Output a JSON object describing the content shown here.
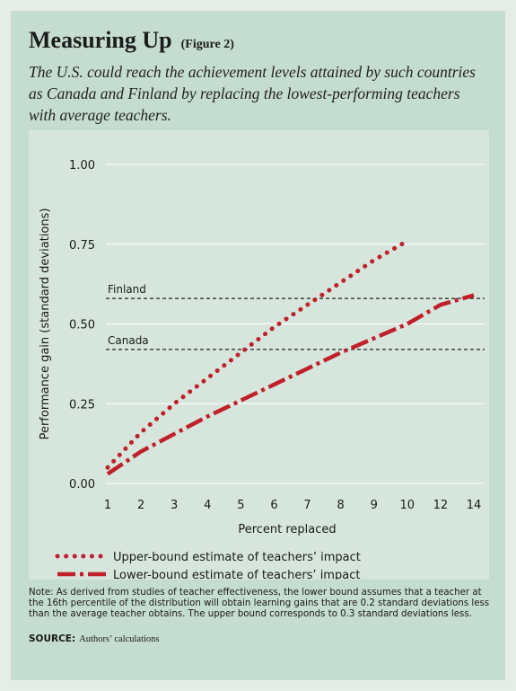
{
  "header": {
    "title": "Measuring Up",
    "figure_label": "(Figure 2)",
    "subtitle": "The U.S. could reach the achievement levels attained by such countries as Canada and Finland by replacing the lowest-performing teachers with average teachers."
  },
  "chart_data": {
    "type": "line",
    "xlabel": "Percent replaced",
    "ylabel": "Performance gain (standard deviations)",
    "xlim": [
      1,
      14
    ],
    "ylim": [
      0,
      1.0
    ],
    "xticks": [
      "1",
      "2",
      "3",
      "4",
      "5",
      "6",
      "7",
      "8",
      "9",
      "10",
      "12",
      "14"
    ],
    "xtick_values": [
      1,
      2,
      3,
      4,
      5,
      6,
      7,
      8,
      9,
      10,
      12,
      14
    ],
    "yticks": [
      "0.00",
      "0.25",
      "0.50",
      "0.75",
      "1.00"
    ],
    "ytick_values": [
      0,
      0.25,
      0.5,
      0.75,
      1.0
    ],
    "grid": "horizontal",
    "series": [
      {
        "name": "Upper-bound estimate of teachers’ impact",
        "style": "dotted",
        "color": "#c0202a",
        "x": [
          1,
          2,
          3,
          4,
          5,
          6,
          7,
          8,
          9,
          10
        ],
        "y": [
          0.05,
          0.16,
          0.25,
          0.33,
          0.41,
          0.49,
          0.56,
          0.63,
          0.7,
          0.76
        ]
      },
      {
        "name": "Lower-bound estimate of teachers’ impact",
        "style": "dash-dot",
        "color": "#c0202a",
        "x": [
          1,
          2,
          4,
          6,
          8,
          10,
          12,
          14
        ],
        "y": [
          0.03,
          0.1,
          0.21,
          0.31,
          0.41,
          0.5,
          0.56,
          0.59
        ]
      }
    ],
    "reference_lines": [
      {
        "label": "Finland",
        "y": 0.58
      },
      {
        "label": "Canada",
        "y": 0.42
      }
    ],
    "legend_placement": "bottom"
  },
  "footer": {
    "note": "Note: As derived from studies of teacher effectiveness, the lower bound assumes that a teacher at the 16th percentile of the distribution will obtain learning gains that are 0.2 standard deviations less than the average teacher obtains. The upper bound corresponds to 0.3 standard deviations less.",
    "source_label": "SOURCE:",
    "source_text": "Authors’ calculations"
  }
}
